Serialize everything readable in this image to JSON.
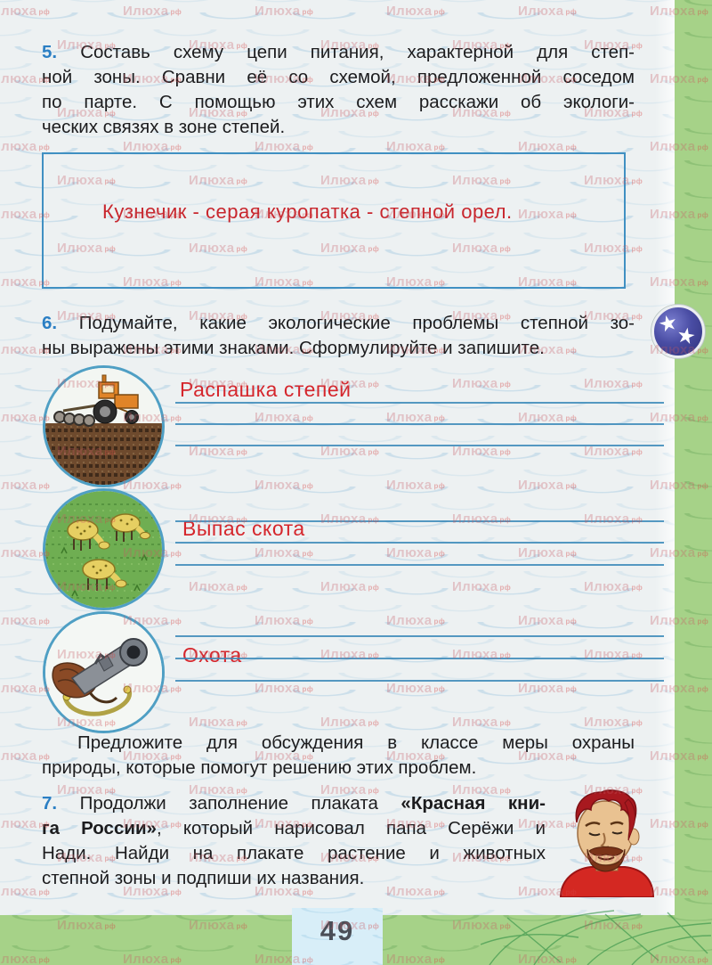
{
  "watermark": {
    "label": "Илюха",
    "suffix": "рф"
  },
  "task5": {
    "lines": [
      [
        {
          "t": "5. ",
          "b": true,
          "c": "#2b7fc4"
        },
        {
          "t": "Составь схему цепи питания, характерной для степ-"
        }
      ],
      "ной зоны. Сравни её со схемой, предложенной соседом",
      "по парте. С помощью этих схем расскажи об экологи-",
      "ческих связях в зоне степей."
    ],
    "answer": "Кузнечик - серая куропатка - степной орел."
  },
  "task6": {
    "lines": [
      [
        {
          "t": "6. ",
          "b": true,
          "c": "#2b7fc4"
        },
        {
          "t": "Подумайте, какие экологические проблемы степной зо-"
        }
      ],
      "ны выражены этими знаками. Сформулируйте и запишите."
    ]
  },
  "sections": [
    {
      "icon": "tractor-plowing-sign",
      "label": "Распашка степей"
    },
    {
      "icon": "sheep-grazing-sign",
      "label": "Выпас скота"
    },
    {
      "icon": "hunting-gun-sign",
      "label": "Охота"
    }
  ],
  "discussion": {
    "lines": [
      "Предложите для обсуждения в классе меры охраны",
      "природы, которые помогут решению этих проблем."
    ]
  },
  "task7": {
    "lines": [
      [
        {
          "t": "7. ",
          "b": true,
          "c": "#2b7fc4"
        },
        {
          "t": "Продолжи заполнение плаката "
        },
        {
          "t": "«Красная кни-",
          "b": true
        }
      ],
      [
        {
          "t": "га России»",
          "b": true
        },
        {
          "t": ", который нарисовал папа Серёжи и"
        }
      ],
      "Нади. Найди на плакате растение и животных",
      "степной зоны и подпиши их названия."
    ]
  },
  "badge": {
    "stars": 2,
    "star_glyph": "★"
  },
  "page_number": "49",
  "colors": {
    "task_number_blue": "#2b7fc4",
    "handwriting_red": "#c8262d",
    "label_red": "#d5262c",
    "rule_blue": "#3888b9",
    "box_border_blue": "#4090c2",
    "edge_green": "#a6d288",
    "page_bg": "#edf1f2",
    "page_number_gray": "#4a4e57",
    "badge_blue": "#2e3179"
  }
}
